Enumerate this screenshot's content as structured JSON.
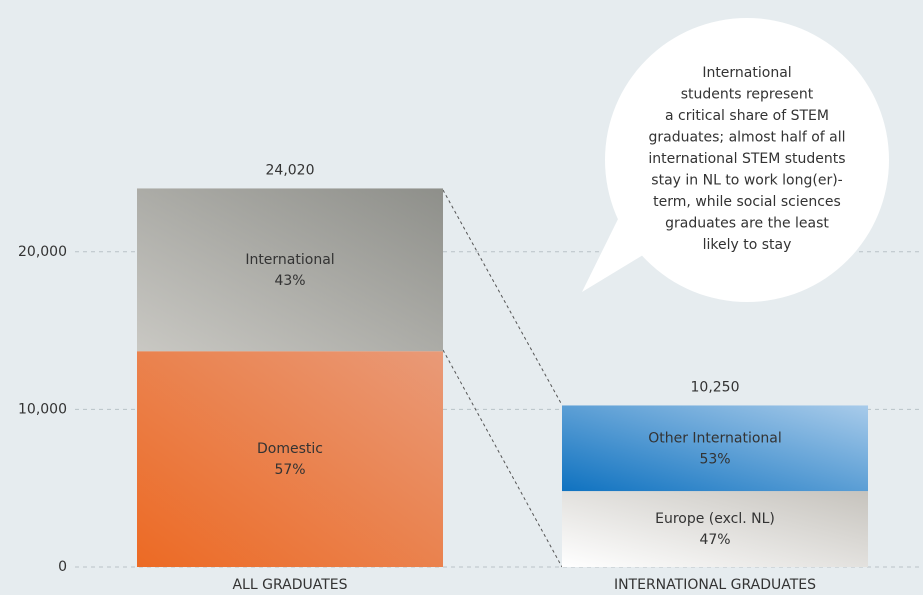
{
  "chart_data": {
    "type": "stacked-bar",
    "ylim": [
      0,
      25000
    ],
    "yticks": [
      0,
      {
        "value": 10000,
        "label": "10,000"
      },
      {
        "value": 20000,
        "label": "20,000"
      }
    ],
    "grid": true,
    "bars": [
      {
        "category": "ALL GRADUATES",
        "total": 24020,
        "total_label": "24,020",
        "segments": [
          {
            "name": "Domestic",
            "value": 57,
            "value_label": "57%",
            "color": "#ec6a24",
            "color2": "#e99a78"
          },
          {
            "name": "International",
            "value": 43,
            "value_label": "43%",
            "color": "#c9c8c3",
            "color2": "#8e8f8a"
          }
        ]
      },
      {
        "category": "INTERNATIONAL GRADUATES",
        "total": 10250,
        "total_label": "10,250",
        "segments": [
          {
            "name": "Europe (excl. NL)",
            "value": 47,
            "value_label": "47%",
            "color": "#ffffff",
            "color2": "#c6c3bd",
            "text_color": "#444444"
          },
          {
            "name": "Other International",
            "value": 53,
            "value_label": "53%",
            "color": "#0f72c0",
            "color2": "#a8cbea"
          }
        ]
      }
    ],
    "annotation": [
      "International",
      "students represent",
      "a critical share of STEM",
      "graduates; almost half of all",
      "international STEM students",
      "stay in NL to work long(er)-",
      "term, while social sciences",
      "graduates are the least",
      "likely to stay"
    ]
  }
}
